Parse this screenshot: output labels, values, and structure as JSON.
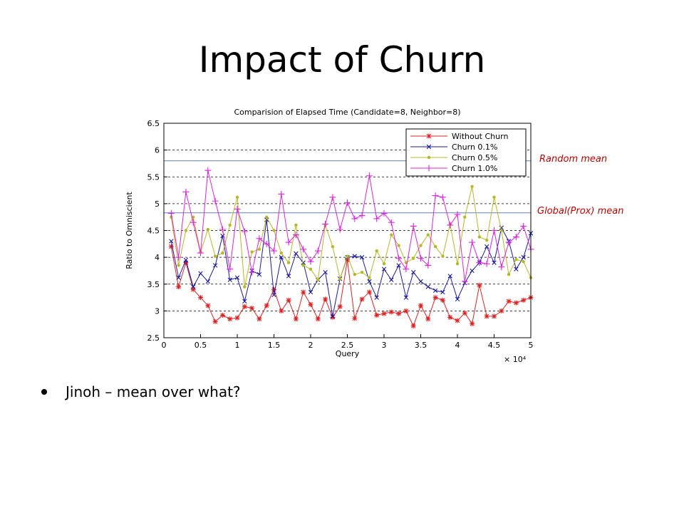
{
  "slide": {
    "title": "Impact of Churn",
    "bullets": [
      "Jinoh – mean over what?"
    ],
    "annotations": {
      "random_mean": "Random mean",
      "global_mean": "Global(Prox) mean"
    }
  },
  "chart_data": {
    "type": "line",
    "title": "Comparision of Elapsed Time (Candidate=8, Neighbor=8)",
    "xlabel": "Query",
    "ylabel": "Ratio to Omniscient",
    "x_multiplier_label": "× 10⁴",
    "xlim": [
      0,
      5
    ],
    "ylim": [
      2.5,
      6.5
    ],
    "x_ticks": [
      "0",
      "0.5",
      "1",
      "1.5",
      "2",
      "2.5",
      "3",
      "3.5",
      "4",
      "4.5",
      "5"
    ],
    "y_ticks": [
      "2.5",
      "3",
      "3.5",
      "4",
      "4.5",
      "5",
      "5.5",
      "6",
      "6.5"
    ],
    "grid": "dashed horizontal",
    "legend": "top-right",
    "x": [
      0.1,
      0.2,
      0.3,
      0.4,
      0.5,
      0.6,
      0.7,
      0.8,
      0.9,
      1.0,
      1.1,
      1.2,
      1.3,
      1.4,
      1.5,
      1.6,
      1.7,
      1.8,
      1.9,
      2.0,
      2.1,
      2.2,
      2.3,
      2.4,
      2.5,
      2.6,
      2.7,
      2.8,
      2.9,
      3.0,
      3.1,
      3.2,
      3.3,
      3.4,
      3.5,
      3.6,
      3.7,
      3.8,
      3.9,
      4.0,
      4.1,
      4.2,
      4.3,
      4.4,
      4.5,
      4.6,
      4.7,
      4.8,
      4.9,
      5.0
    ],
    "series": [
      {
        "name": "Without Churn",
        "color": "#e02020",
        "marker": "star",
        "values": [
          4.2,
          3.45,
          3.9,
          3.4,
          3.25,
          3.1,
          2.8,
          2.92,
          2.85,
          2.87,
          3.08,
          3.05,
          2.85,
          3.1,
          3.4,
          3.0,
          3.2,
          2.85,
          3.35,
          3.12,
          2.85,
          3.22,
          2.88,
          3.08,
          3.95,
          2.86,
          3.22,
          3.35,
          2.92,
          2.95,
          2.98,
          2.95,
          3.0,
          2.72,
          3.1,
          2.85,
          3.25,
          3.2,
          2.88,
          2.82,
          2.96,
          2.76,
          3.48,
          2.9,
          2.9,
          3.0,
          3.18,
          3.15,
          3.2,
          3.25
        ]
      },
      {
        "name": "Churn 0.1%",
        "color": "#1a1aa0",
        "marker": "x",
        "values": [
          4.3,
          3.62,
          3.95,
          3.45,
          3.7,
          3.55,
          3.85,
          4.4,
          3.58,
          3.62,
          3.18,
          3.75,
          3.68,
          4.7,
          3.3,
          4.0,
          3.65,
          4.07,
          3.9,
          3.35,
          3.58,
          3.72,
          2.9,
          3.6,
          4.0,
          4.02,
          4.0,
          3.55,
          3.25,
          3.78,
          3.58,
          3.85,
          3.25,
          3.72,
          3.55,
          3.45,
          3.38,
          3.35,
          3.65,
          3.22,
          3.52,
          3.75,
          3.9,
          4.2,
          3.9,
          4.55,
          4.3,
          3.78,
          4.0,
          4.45
        ]
      },
      {
        "name": "Churn 0.5%",
        "color": "#b8b820",
        "marker": "dot",
        "values": [
          4.75,
          3.85,
          4.5,
          4.75,
          4.1,
          4.52,
          4.02,
          4.08,
          4.6,
          5.12,
          3.45,
          4.1,
          4.15,
          4.75,
          4.5,
          4.08,
          3.9,
          4.6,
          3.85,
          3.78,
          3.58,
          4.6,
          4.2,
          3.6,
          4.02,
          3.68,
          3.72,
          3.62,
          4.12,
          3.88,
          4.42,
          4.22,
          3.9,
          3.98,
          4.22,
          4.42,
          4.2,
          4.02,
          4.62,
          3.88,
          4.75,
          5.32,
          4.38,
          4.32,
          5.12,
          4.5,
          3.68,
          3.96,
          3.92,
          3.62
        ]
      },
      {
        "name": "Churn 1.0%",
        "color": "#e020e0",
        "marker": "plus",
        "values": [
          4.82,
          4.0,
          5.22,
          4.65,
          4.08,
          5.62,
          5.05,
          4.52,
          3.78,
          4.9,
          4.48,
          3.72,
          4.35,
          4.25,
          4.12,
          5.18,
          4.28,
          4.42,
          4.15,
          3.92,
          4.12,
          4.62,
          5.12,
          4.52,
          5.02,
          4.72,
          4.78,
          5.52,
          4.72,
          4.82,
          4.65,
          3.98,
          3.78,
          4.58,
          3.98,
          3.85,
          5.15,
          5.12,
          4.6,
          4.8,
          3.55,
          4.28,
          3.9,
          3.88,
          4.5,
          3.82,
          4.28,
          4.38,
          4.58,
          4.15
        ]
      }
    ],
    "reference_lines": [
      {
        "label": "Random mean",
        "y": 5.8,
        "color": "#7090c0"
      },
      {
        "label": "Global(Prox) mean",
        "y": 4.83,
        "color": "#7090c0"
      }
    ]
  }
}
